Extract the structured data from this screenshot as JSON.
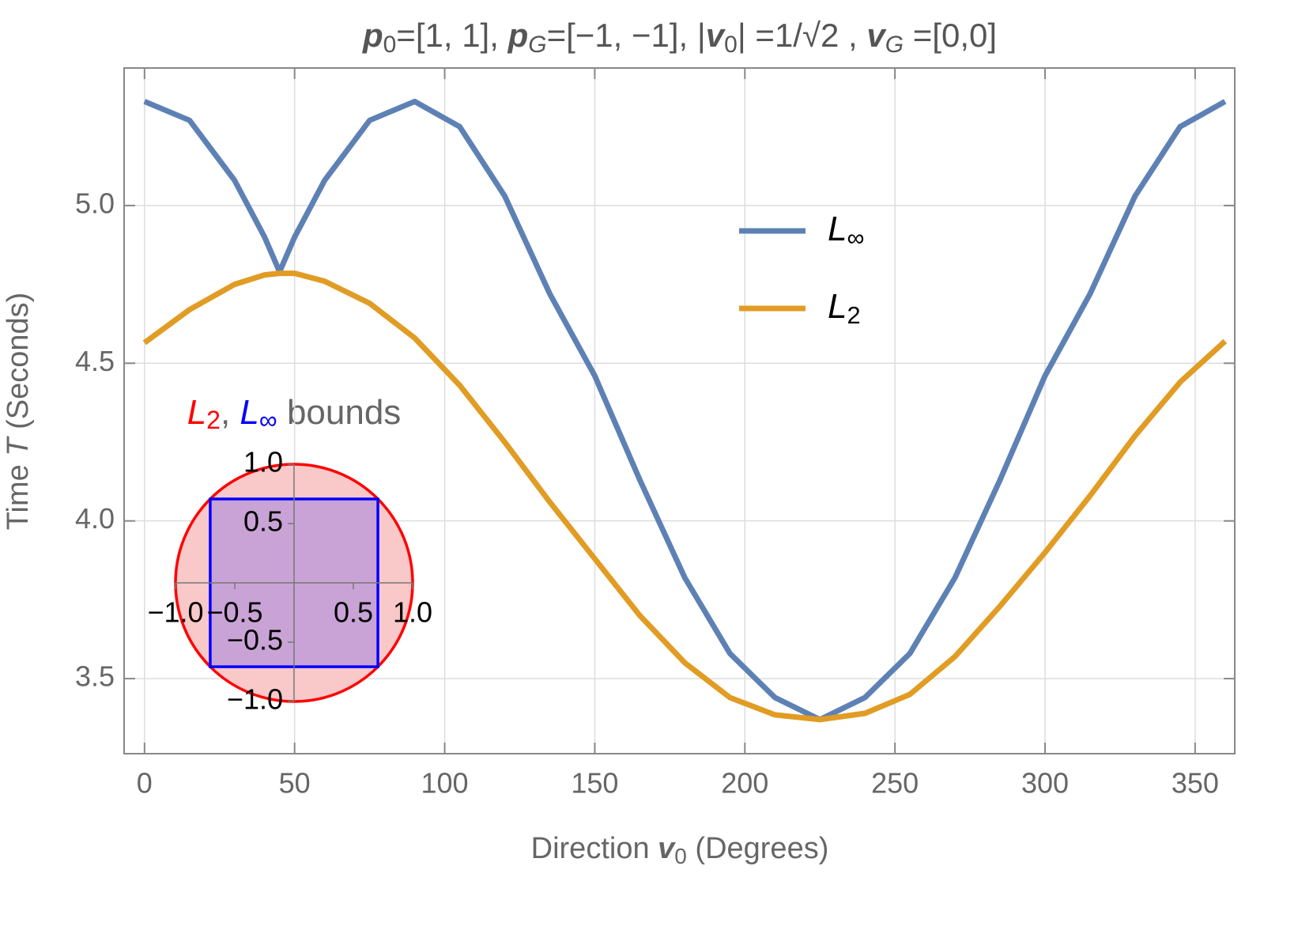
{
  "chart_data": {
    "type": "line",
    "title_parts": [
      "p",
      "0",
      "=[1, 1], ",
      "p",
      "G",
      "=[−1, −1], |",
      "v",
      "0",
      "| =1/√2 , ",
      "v",
      "G",
      " =[0,0]"
    ],
    "x_label_parts": [
      "Direction ",
      "v",
      "0",
      " (Degrees)"
    ],
    "y_label_parts": [
      "Time ",
      "T",
      " (Seconds)"
    ],
    "x": [
      0,
      15,
      30,
      40,
      45,
      50,
      60,
      75,
      90,
      105,
      120,
      135,
      150,
      165,
      180,
      195,
      210,
      225,
      240,
      255,
      270,
      285,
      300,
      315,
      330,
      345,
      360
    ],
    "series": [
      {
        "name": "L∞",
        "color": "#5e81b5",
        "values": [
          5.33,
          5.27,
          5.08,
          4.9,
          4.79,
          4.9,
          5.08,
          5.27,
          5.33,
          5.25,
          5.03,
          4.72,
          4.46,
          4.13,
          3.82,
          3.58,
          3.44,
          3.37,
          3.44,
          3.58,
          3.82,
          4.13,
          4.46,
          4.72,
          5.03,
          5.25,
          5.33
        ]
      },
      {
        "name": "L2",
        "color": "#e19c24",
        "values": [
          4.565,
          4.67,
          4.75,
          4.78,
          4.785,
          4.785,
          4.76,
          4.69,
          4.58,
          4.43,
          4.25,
          4.06,
          3.88,
          3.7,
          3.55,
          3.44,
          3.385,
          3.37,
          3.39,
          3.45,
          3.57,
          3.73,
          3.9,
          4.08,
          4.27,
          4.44,
          4.57
        ]
      }
    ],
    "xlim": [
      -6.8,
      363.2
    ],
    "ylim": [
      3.262,
      5.436
    ],
    "xticks": [
      0,
      50,
      100,
      150,
      200,
      250,
      300,
      350
    ],
    "yticks": [
      {
        "value": 3.5,
        "label": "3.5"
      },
      {
        "value": 4,
        "label": "4.0"
      },
      {
        "value": 4.5,
        "label": "4.5"
      },
      {
        "value": 5,
        "label": "5.0"
      }
    ],
    "grid": true,
    "legend": "upper right",
    "inset": {
      "title_parts": [
        "L2",
        ", ",
        "L∞",
        " bounds"
      ],
      "title_colors": [
        "#ff0000",
        "#666666",
        "#0000ff",
        "#666666"
      ],
      "xlim": [
        -1,
        1
      ],
      "ylim": [
        -1,
        1
      ],
      "xticks": [
        {
          "value": -1,
          "label": "−1.0"
        },
        {
          "value": -0.5,
          "label": "−0.5"
        },
        {
          "value": 0.5,
          "label": "0.5"
        },
        {
          "value": 1,
          "label": "1.0"
        }
      ],
      "yticks": [
        {
          "value": -1,
          "label": "−1.0"
        },
        {
          "value": -0.5,
          "label": "−0.5"
        },
        {
          "value": 0.5,
          "label": "0.5"
        },
        {
          "value": 1,
          "label": "1.0"
        }
      ],
      "circle_radius": 1,
      "circle_color": "#ff0000",
      "square_half": 0.7071,
      "square_color": "#0000ff"
    }
  }
}
